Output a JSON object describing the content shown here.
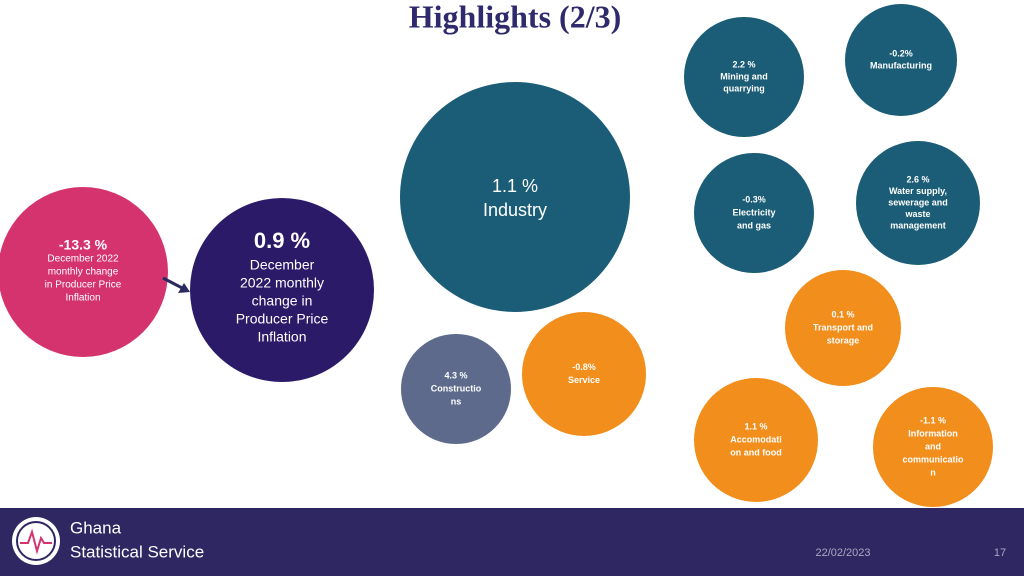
{
  "header": {
    "title": "Highlights (2/3)"
  },
  "nodes": [
    {
      "value": "-0.2%",
      "label_lines": [
        "Manufacturing"
      ],
      "color": "#1b5d76"
    },
    {
      "value": "2.2 %",
      "label_lines": [
        "Mining and",
        "quarrying"
      ],
      "color": "#1b5d76"
    },
    {
      "value": "1.1 %",
      "label_lines": [
        "Industry"
      ],
      "color": "#1b5d76"
    },
    {
      "value": "-0.3%",
      "label_lines": [
        "Electricity",
        "and gas"
      ],
      "color": "#1b5d76"
    },
    {
      "value": "2.6 %",
      "label_lines": [
        "Water supply,",
        "sewerage and",
        "waste",
        "management"
      ],
      "color": "#1b5d76"
    },
    {
      "value": "0.1 %",
      "label_lines": [
        "Transport and",
        "storage"
      ],
      "color": "#f28e1c"
    },
    {
      "value": "-0.8%",
      "label_lines": [
        "Service"
      ],
      "color": "#f28e1c"
    },
    {
      "value": "4.3 %",
      "label_lines": [
        "Constructio",
        "ns"
      ],
      "color": "#5d6a8c"
    },
    {
      "value": "1.1 %",
      "label_lines": [
        "Accomodati",
        "on and food"
      ],
      "color": "#f28e1c"
    },
    {
      "value": "-1.1 %",
      "label_lines": [
        "Information",
        "and",
        "communicatio",
        "n"
      ],
      "color": "#f28e1c"
    },
    {
      "value": "-13.3 %",
      "label_lines": [
        "December 2022",
        "monthly change",
        "in Producer Price",
        "Inflation"
      ],
      "color": "#d5336d"
    },
    {
      "value": "0.9 %",
      "label_lines": [
        "December",
        "2022 monthly",
        "change in",
        "Producer Price",
        "Inflation"
      ],
      "color": "#2a1a68"
    }
  ],
  "footer": {
    "org_line1": "Ghana",
    "org_line2": "Statistical Service",
    "date": "22/02/2023",
    "page": "17"
  }
}
